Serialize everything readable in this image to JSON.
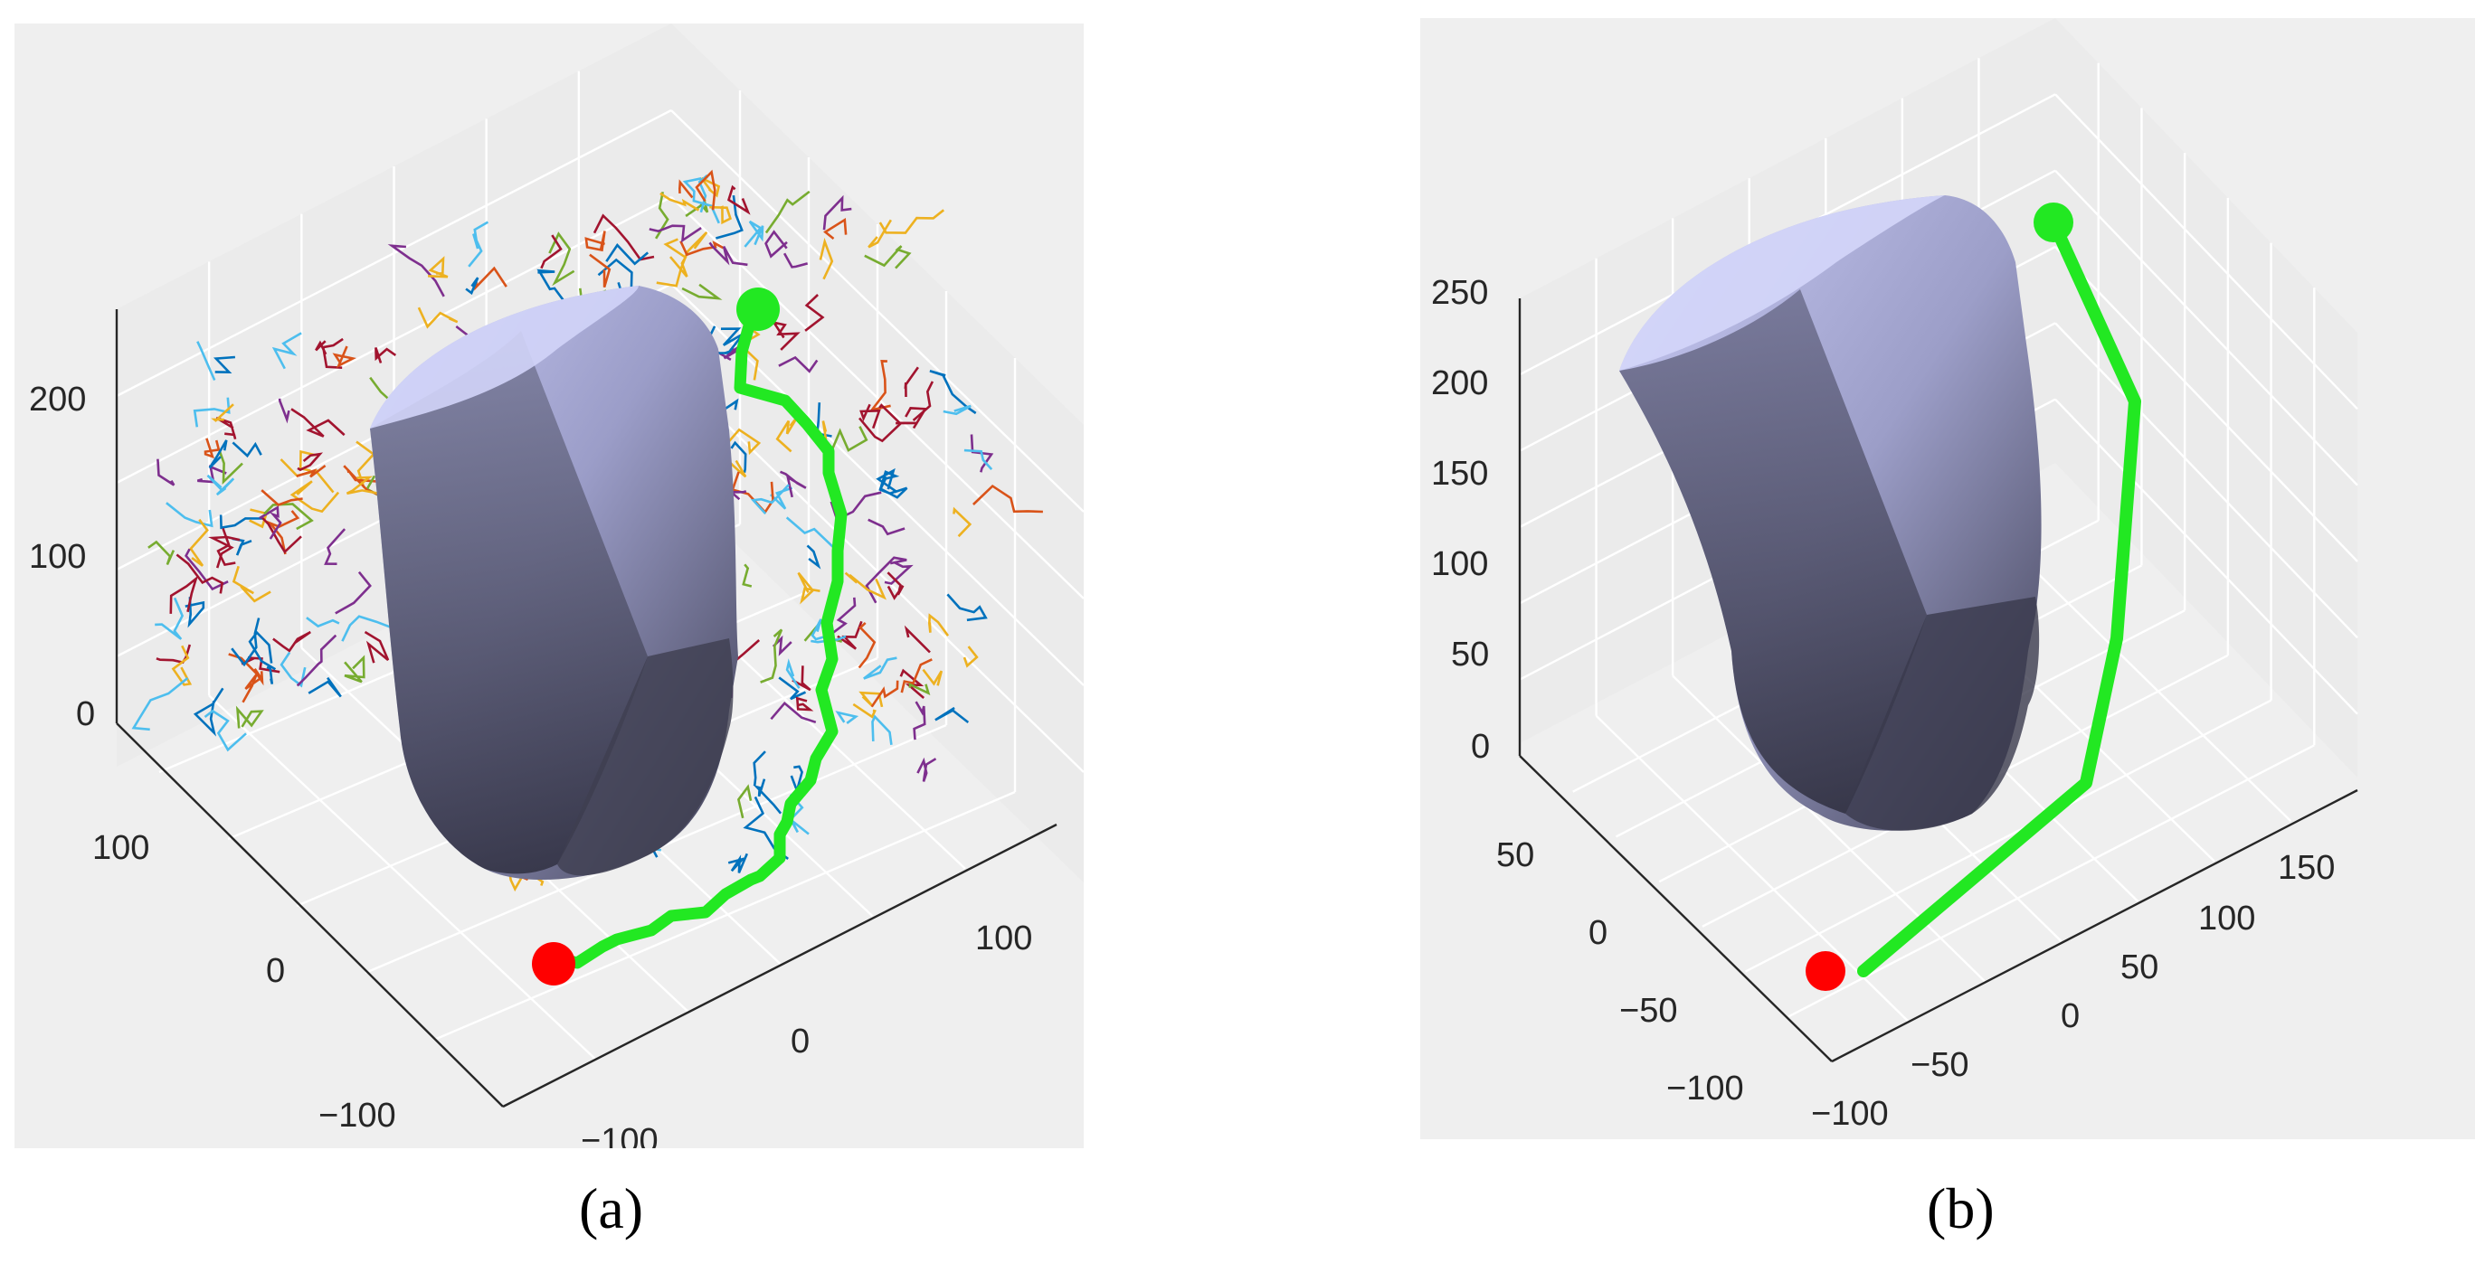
{
  "captions": {
    "a": "(a)",
    "b": "(b)"
  },
  "colors": {
    "path": "#22e822",
    "start": "#ff0000",
    "goal": "#22e822",
    "obstacle_light": "#b4b6e6",
    "obstacle_dark": "#4a4a62",
    "tree": [
      "#0072bd",
      "#d95319",
      "#edb120",
      "#7e2f8e",
      "#77ac30",
      "#4dbeee",
      "#a2142f"
    ]
  },
  "chart_data": [
    {
      "type": "line3d",
      "panel": "a",
      "title": "",
      "xlabel": "",
      "ylabel": "",
      "zlabel": "",
      "xlim": [
        -150,
        150
      ],
      "ylim": [
        -150,
        150
      ],
      "zlim": [
        0,
        250
      ],
      "xticks": [
        -100,
        0,
        100
      ],
      "yticks": [
        -100,
        0,
        100
      ],
      "zticks": [
        0,
        100,
        200
      ],
      "xtick_labels": [
        "−100",
        "0",
        "100"
      ],
      "ytick_labels": [
        "−100",
        "0",
        "100"
      ],
      "ztick_labels": [
        "0",
        "100",
        "200"
      ],
      "grid": true,
      "series": [
        {
          "role": "rrt-tree",
          "note_colors": "tree"
        },
        {
          "role": "path"
        },
        {
          "role": "start"
        },
        {
          "role": "goal"
        },
        {
          "role": "obstacle"
        }
      ]
    },
    {
      "type": "line3d",
      "panel": "b",
      "title": "",
      "xlabel": "",
      "ylabel": "",
      "zlabel": "",
      "xlim": [
        -100,
        150
      ],
      "ylim": [
        -100,
        75
      ],
      "zlim": [
        0,
        250
      ],
      "xticks": [
        -100,
        -50,
        0,
        50,
        100,
        150
      ],
      "yticks": [
        -100,
        -50,
        0,
        50
      ],
      "zticks": [
        0,
        50,
        100,
        150,
        200,
        250
      ],
      "xtick_labels": [
        "−100",
        "−50",
        "0",
        "50",
        "100",
        "150"
      ],
      "ytick_labels": [
        "−100",
        "−50",
        "0",
        "50"
      ],
      "ztick_labels": [
        "0",
        "50",
        "100",
        "150",
        "200",
        "250"
      ],
      "grid": true,
      "series": [
        {
          "role": "path"
        },
        {
          "role": "start"
        },
        {
          "role": "goal"
        },
        {
          "role": "obstacle"
        }
      ]
    }
  ]
}
